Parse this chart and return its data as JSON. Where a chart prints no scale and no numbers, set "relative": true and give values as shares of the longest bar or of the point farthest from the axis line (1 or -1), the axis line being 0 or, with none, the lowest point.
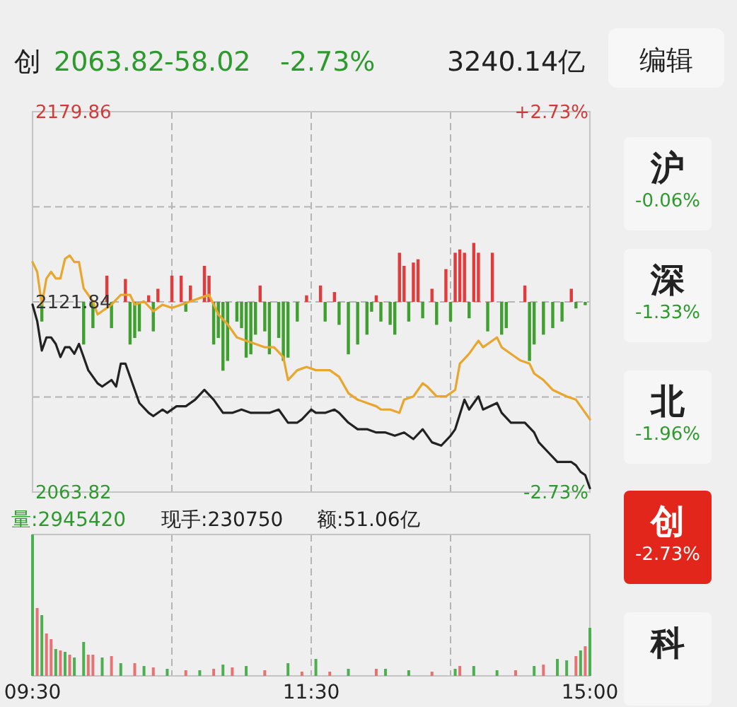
{
  "chart_data": [
    {
      "type": "other",
      "annotations": [
        "创",
        "2063.82",
        "-58.02",
        "-2.73%",
        "3240.14亿",
        "编辑"
      ],
      "colors": [
        "#222222",
        "#2e9a2e",
        "#2e9a2e",
        "#2e9a2e",
        "#222222",
        "#222222"
      ]
    },
    {
      "type": "line",
      "categories": [
        null,
        null,
        null,
        null,
        null,
        null,
        null,
        null,
        null,
        null,
        null,
        null,
        null,
        null,
        null,
        null,
        null,
        null,
        null,
        null,
        null,
        null,
        null,
        null,
        null,
        null,
        null,
        null,
        null,
        null,
        null,
        null,
        null,
        null,
        null,
        null,
        null,
        null,
        null,
        null,
        null,
        null,
        null,
        null,
        null,
        null,
        null,
        null,
        null,
        null,
        null,
        null,
        null,
        null,
        null,
        null,
        null,
        null,
        null,
        null,
        null,
        null,
        null,
        null,
        null,
        null,
        null,
        null,
        null,
        null,
        null,
        null,
        null,
        null,
        null,
        null,
        null,
        null,
        null,
        null,
        null,
        null,
        null,
        null,
        null,
        null,
        null,
        null,
        null,
        null,
        null,
        null,
        null,
        null,
        null,
        null,
        null,
        null,
        null,
        null,
        null,
        null,
        null,
        null,
        null,
        null,
        null,
        null,
        null,
        null,
        null,
        null,
        null,
        null,
        null,
        null,
        null,
        null,
        null,
        null,
        null
      ],
      "ylim": [
        2063.82,
        2179.86
      ],
      "yticks": [
        2179.86,
        {
          "value": 2150.85,
          "label": null
        },
        2121.84,
        {
          "value": 2092.83,
          "label": null
        },
        2063.82
      ],
      "y2lim": [
        -2.73,
        2.73
      ],
      "y2ticks": [
        {
          "value": 2.73,
          "label": "+2.73%"
        },
        {
          "value": -2.73,
          "label": "-2.73%"
        }
      ],
      "tick_labels": "y",
      "grid": true,
      "line_style": "solid",
      "marker": "none",
      "series": [
        {
          "type": "bar",
          "values": [
            null,
            null,
            -6,
            null,
            null,
            null,
            null,
            null,
            null,
            null,
            null,
            -13,
            null,
            -8,
            null,
            null,
            8,
            -8,
            null,
            null,
            7,
            -13,
            -11,
            -9,
            null,
            2,
            -9,
            4,
            null,
            null,
            8,
            null,
            8,
            -3,
            5,
            null,
            null,
            11,
            8,
            -13,
            -11,
            -21,
            -18,
            null,
            -6,
            -8,
            -17,
            -16,
            -10,
            5,
            -9,
            -16,
            null,
            -11,
            -18,
            -17,
            null,
            -6,
            null,
            2,
            null,
            null,
            5,
            -6,
            null,
            3,
            -7,
            null,
            -16,
            null,
            -13,
            null,
            -10,
            -3,
            2,
            -6,
            null,
            -7,
            -10,
            15,
            11,
            -6,
            12,
            13,
            -5,
            null,
            4,
            -7,
            null,
            10,
            -6,
            15,
            16,
            15,
            -5,
            18,
            15,
            null,
            -9,
            15,
            null,
            -10,
            -8,
            null,
            null,
            null,
            5,
            -18,
            -13,
            null,
            -10,
            null,
            -8,
            null,
            -6,
            null,
            4,
            -2,
            null,
            -1,
            null
          ],
          "colors": [
            null,
            null,
            "#3f9f2f",
            null,
            null,
            null,
            null,
            null,
            null,
            null,
            null,
            "#3f9f2f",
            null,
            "#3f9f2f",
            null,
            null,
            "#e23b3b",
            "#3f9f2f",
            null,
            null,
            "#e23b3b",
            "#3f9f2f",
            "#3f9f2f",
            "#3f9f2f",
            null,
            "#e23b3b",
            "#3f9f2f",
            "#e23b3b",
            null,
            null,
            "#e23b3b",
            null,
            "#e23b3b",
            "#3f9f2f",
            "#e23b3b",
            null,
            null,
            "#e23b3b",
            "#e23b3b",
            "#3f9f2f",
            "#3f9f2f",
            "#3f9f2f",
            "#3f9f2f",
            null,
            "#3f9f2f",
            "#3f9f2f",
            "#3f9f2f",
            "#3f9f2f",
            "#3f9f2f",
            "#e23b3b",
            "#3f9f2f",
            "#3f9f2f",
            null,
            "#3f9f2f",
            "#3f9f2f",
            "#3f9f2f",
            null,
            "#3f9f2f",
            null,
            "#e23b3b",
            null,
            null,
            "#e23b3b",
            "#3f9f2f",
            null,
            "#e23b3b",
            "#3f9f2f",
            null,
            "#3f9f2f",
            null,
            "#3f9f2f",
            null,
            "#3f9f2f",
            "#3f9f2f",
            "#e23b3b",
            "#3f9f2f",
            null,
            "#3f9f2f",
            "#3f9f2f",
            "#e23b3b",
            "#e23b3b",
            "#3f9f2f",
            "#e23b3b",
            "#e23b3b",
            "#3f9f2f",
            null,
            "#e23b3b",
            "#3f9f2f",
            null,
            "#e23b3b",
            "#3f9f2f",
            "#e23b3b",
            "#e23b3b",
            "#e23b3b",
            "#3f9f2f",
            "#e23b3b",
            "#e23b3b",
            null,
            "#3f9f2f",
            "#e23b3b",
            null,
            "#3f9f2f",
            "#3f9f2f",
            null,
            null,
            null,
            "#e23b3b",
            "#3f9f2f",
            "#3f9f2f",
            null,
            "#3f9f2f",
            null,
            "#3f9f2f",
            null,
            "#3f9f2f",
            null,
            "#e23b3b",
            "#3f9f2f",
            null,
            "#3f9f2f",
            null
          ],
          "base": [
            null,
            null,
            2121.84,
            null,
            null,
            null,
            null,
            null,
            null,
            null,
            null,
            2121.84,
            null,
            2121.84,
            null,
            null,
            2121.84,
            2121.84,
            null,
            null,
            2121.84,
            2121.84,
            2121.84,
            2121.84,
            null,
            2121.84,
            2121.84,
            2121.84,
            null,
            null,
            2121.84,
            null,
            2121.84,
            2121.84,
            2121.84,
            null,
            null,
            2121.84,
            2121.84,
            2121.84,
            2121.84,
            2121.84,
            2121.84,
            null,
            2121.84,
            2121.84,
            2121.84,
            2121.84,
            2121.84,
            2121.84,
            2121.84,
            2121.84,
            null,
            2121.84,
            2121.84,
            2121.84,
            null,
            2121.84,
            null,
            2121.84,
            null,
            null,
            2121.84,
            2121.84,
            null,
            2121.84,
            2121.84,
            null,
            2121.84,
            null,
            2121.84,
            null,
            2121.84,
            2121.84,
            2121.84,
            2121.84,
            null,
            2121.84,
            2121.84,
            2121.84,
            2121.84,
            2121.84,
            2121.84,
            2121.84,
            2121.84,
            null,
            2121.84,
            2121.84,
            null,
            2121.84,
            2121.84,
            2121.84,
            2121.84,
            2121.84,
            2121.84,
            2121.84,
            2121.84,
            null,
            2121.84,
            2121.84,
            null,
            2121.84,
            2121.84,
            null,
            null,
            null,
            2121.84,
            2121.84,
            2121.84,
            null,
            2121.84,
            null,
            2121.84,
            null,
            2121.84,
            null,
            2121.84,
            2121.84,
            null,
            2121.84,
            null
          ]
        },
        {
          "type": "line",
          "color": "#e9a62c",
          "values": [
            2134,
            2131,
            2121,
            2129,
            2131,
            2129,
            2129,
            2135,
            2136,
            2134,
            2134,
            2126,
            null,
            2122,
            2118,
            null,
            null,
            2121,
            null,
            2124,
            null,
            2124,
            2121,
            null,
            2122,
            null,
            2119,
            null,
            2121,
            null,
            2120,
            null,
            2121,
            null,
            2122,
            null,
            2123,
            null,
            2124,
            2121,
            2118,
            null,
            2115,
            null,
            2111,
            null,
            2110,
            null,
            2109,
            null,
            2108,
            null,
            2108,
            null,
            2105,
            2098,
            null,
            2101,
            null,
            2102,
            null,
            2101,
            null,
            null,
            2101,
            null,
            2099,
            null,
            2094,
            null,
            2092,
            null,
            2091,
            null,
            2090,
            2089,
            null,
            2089,
            null,
            2088,
            2092,
            null,
            2093,
            null,
            2097,
            2096,
            null,
            2093,
            null,
            2093,
            null,
            2095,
            2103,
            null,
            2106,
            null,
            2110,
            2108,
            null,
            null,
            2111,
            2108,
            null,
            2106,
            null,
            2104,
            null,
            2103,
            2100,
            null,
            2098,
            null,
            2095,
            null,
            null,
            2093,
            null,
            2092,
            null,
            2088,
            2086
          ]
        },
        {
          "type": "line",
          "color": "#222222",
          "values": [
            2121,
            2116,
            2107,
            2111,
            2111,
            2109,
            2105,
            2108,
            2108,
            2106,
            2109,
            2105,
            2101,
            null,
            2097,
            2096,
            null,
            2098,
            2096,
            2103,
            2103,
            null,
            2095,
            2091,
            null,
            2088,
            2087,
            null,
            2089,
            2088,
            null,
            2090,
            null,
            2090,
            null,
            2092,
            null,
            2095,
            null,
            2092,
            2090,
            2088,
            null,
            2088,
            null,
            2089,
            null,
            2088,
            null,
            2088,
            null,
            2088,
            null,
            2089,
            null,
            2085,
            null,
            2085,
            2086,
            null,
            2089,
            2088,
            null,
            2088,
            null,
            2089,
            2088,
            null,
            2085,
            null,
            2083,
            null,
            2083,
            null,
            2082,
            null,
            2082,
            null,
            2081,
            null,
            2082,
            null,
            2080,
            null,
            2083,
            null,
            2079,
            null,
            2078,
            null,
            2081,
            2083,
            null,
            2092,
            2089,
            null,
            2093,
            2089,
            null,
            null,
            2091,
            2088,
            null,
            2085,
            null,
            2085,
            2085,
            null,
            2082,
            2079,
            null,
            2076,
            null,
            2073,
            null,
            null,
            2073,
            2072,
            2070,
            2069,
            2065
          ]
        }
      ]
    },
    {
      "type": "bar",
      "relative": true,
      "annotations": [
        "量:2945420",
        "现手:230750",
        "额:51.06亿"
      ],
      "grid": "x",
      "tick_labels": "x",
      "categories": [
        "09:30",
        null,
        null,
        null,
        null,
        null,
        null,
        null,
        null,
        null,
        null,
        null,
        null,
        null,
        null,
        null,
        null,
        null,
        null,
        null,
        null,
        null,
        null,
        null,
        null,
        null,
        null,
        null,
        null,
        null,
        null,
        null,
        null,
        null,
        null,
        null,
        null,
        null,
        null,
        null,
        null,
        null,
        null,
        null,
        null,
        null,
        null,
        null,
        null,
        null,
        null,
        null,
        null,
        null,
        null,
        null,
        null,
        null,
        null,
        null,
        "11:30",
        null,
        null,
        null,
        null,
        null,
        null,
        null,
        null,
        null,
        null,
        null,
        null,
        null,
        null,
        null,
        null,
        null,
        null,
        null,
        null,
        null,
        null,
        null,
        null,
        null,
        null,
        null,
        null,
        null,
        null,
        null,
        null,
        null,
        null,
        null,
        null,
        null,
        null,
        null,
        null,
        null,
        null,
        null,
        null,
        null,
        null,
        null,
        null,
        null,
        null,
        null,
        null,
        null,
        null,
        null,
        null,
        null,
        null,
        null,
        "15:00"
      ],
      "values": [
        1.0,
        0.48,
        0.43,
        0.3,
        0.26,
        0.19,
        0.18,
        0.17,
        0.15,
        0.13,
        null,
        0.24,
        0.15,
        0.15,
        null,
        0.13,
        null,
        0.14,
        null,
        0.09,
        null,
        null,
        0.09,
        null,
        0.07,
        null,
        0.06,
        null,
        null,
        0.05,
        null,
        null,
        null,
        0.04,
        null,
        null,
        0.04,
        null,
        null,
        0.05,
        null,
        0.08,
        null,
        0.06,
        null,
        null,
        0.07,
        null,
        null,
        null,
        0.04,
        null,
        null,
        null,
        null,
        0.09,
        null,
        null,
        0.03,
        null,
        null,
        0.12,
        null,
        null,
        0.03,
        null,
        null,
        null,
        0.05,
        null,
        null,
        null,
        null,
        null,
        0.05,
        null,
        0.05,
        null,
        null,
        null,
        null,
        0.04,
        null,
        null,
        null,
        null,
        0.03,
        null,
        null,
        null,
        null,
        0.05,
        0.07,
        null,
        null,
        0.07,
        null,
        null,
        null,
        null,
        0.04,
        null,
        null,
        null,
        0.04,
        null,
        null,
        null,
        0.07,
        null,
        0.08,
        null,
        null,
        0.12,
        null,
        0.11,
        null,
        0.14,
        0.18,
        0.21,
        0.34
      ],
      "colors": [
        "#4caf50",
        "#e57373",
        "#4caf50",
        "#e57373",
        "#e57373",
        "#4caf50",
        "#e57373",
        "#4caf50",
        "#e57373",
        "#4caf50",
        null,
        "#4caf50",
        "#e57373",
        "#e57373",
        null,
        "#4caf50",
        null,
        "#e57373",
        null,
        "#4caf50",
        null,
        null,
        "#e57373",
        null,
        "#4caf50",
        null,
        "#e57373",
        null,
        null,
        "#4caf50",
        null,
        null,
        null,
        "#e57373",
        null,
        null,
        "#4caf50",
        null,
        null,
        "#e57373",
        null,
        "#4caf50",
        null,
        "#e57373",
        null,
        null,
        "#4caf50",
        null,
        null,
        null,
        "#e57373",
        null,
        null,
        null,
        null,
        "#4caf50",
        null,
        null,
        "#e57373",
        null,
        null,
        "#4caf50",
        null,
        null,
        "#e57373",
        null,
        null,
        null,
        "#4caf50",
        null,
        null,
        null,
        null,
        null,
        "#e57373",
        null,
        "#4caf50",
        null,
        null,
        null,
        null,
        "#4caf50",
        null,
        null,
        null,
        null,
        "#e57373",
        null,
        null,
        null,
        null,
        "#4caf50",
        "#e57373",
        null,
        null,
        "#4caf50",
        null,
        null,
        null,
        null,
        "#4caf50",
        null,
        null,
        null,
        "#e57373",
        null,
        null,
        null,
        "#4caf50",
        null,
        "#e57373",
        null,
        null,
        "#4caf50",
        null,
        "#4caf50",
        null,
        "#e57373",
        "#4caf50",
        "#e57373",
        "#4caf50"
      ]
    },
    {
      "type": "other",
      "annotations": [
        "沪",
        "-0.06%",
        "深",
        "-1.33%",
        "北",
        "-1.96%",
        "创",
        "-2.73%",
        "科"
      ],
      "colors": [
        "#222222",
        "#2e9a2e",
        "#222222",
        "#2e9a2e",
        "#222222",
        "#2e9a2e",
        "#ffffff",
        "#ffffff",
        "#222222"
      ]
    }
  ]
}
